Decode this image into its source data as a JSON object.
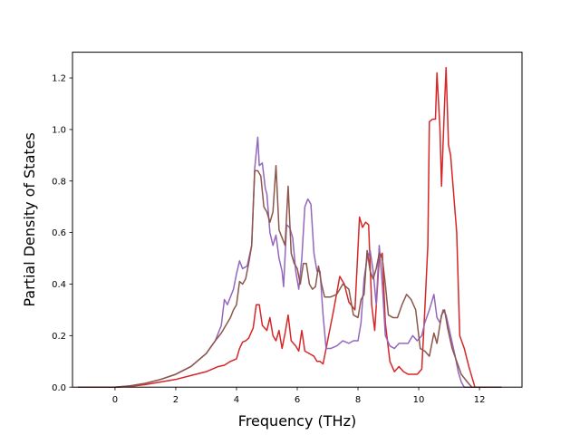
{
  "chart_data": {
    "type": "line",
    "title": "",
    "xlabel": "Frequency (THz)",
    "ylabel": "Partial Density of States",
    "xlim": [
      -1.4,
      13.4
    ],
    "ylim": [
      0.0,
      1.3
    ],
    "xticks": [
      0,
      2,
      4,
      6,
      8,
      10,
      12
    ],
    "yticks": [
      0.0,
      0.2,
      0.4,
      0.6,
      0.8,
      1.0,
      1.2
    ],
    "xtick_labels": [
      "0",
      "2",
      "4",
      "6",
      "8",
      "10",
      "12"
    ],
    "ytick_labels": [
      "0.0",
      "0.2",
      "0.4",
      "0.6",
      "0.8",
      "1.0",
      "1.2"
    ],
    "grid": false,
    "legend": "none",
    "series": [
      {
        "color": "#d62728",
        "points": [
          [
            -1.2,
            0
          ],
          [
            0,
            0
          ],
          [
            0.5,
            0.003
          ],
          [
            1,
            0.01
          ],
          [
            1.5,
            0.02
          ],
          [
            2,
            0.03
          ],
          [
            2.5,
            0.045
          ],
          [
            3,
            0.06
          ],
          [
            3.2,
            0.07
          ],
          [
            3.4,
            0.08
          ],
          [
            3.6,
            0.085
          ],
          [
            3.8,
            0.1
          ],
          [
            4.0,
            0.11
          ],
          [
            4.1,
            0.15
          ],
          [
            4.2,
            0.175
          ],
          [
            4.3,
            0.18
          ],
          [
            4.4,
            0.19
          ],
          [
            4.55,
            0.23
          ],
          [
            4.65,
            0.32
          ],
          [
            4.75,
            0.32
          ],
          [
            4.85,
            0.24
          ],
          [
            5.0,
            0.22
          ],
          [
            5.1,
            0.27
          ],
          [
            5.2,
            0.2
          ],
          [
            5.3,
            0.18
          ],
          [
            5.4,
            0.22
          ],
          [
            5.5,
            0.15
          ],
          [
            5.6,
            0.21
          ],
          [
            5.7,
            0.28
          ],
          [
            5.8,
            0.18
          ],
          [
            5.95,
            0.16
          ],
          [
            6.05,
            0.14
          ],
          [
            6.15,
            0.22
          ],
          [
            6.25,
            0.14
          ],
          [
            6.4,
            0.13
          ],
          [
            6.55,
            0.12
          ],
          [
            6.65,
            0.1
          ],
          [
            6.75,
            0.1
          ],
          [
            6.85,
            0.09
          ],
          [
            7.0,
            0.18
          ],
          [
            7.2,
            0.3
          ],
          [
            7.4,
            0.43
          ],
          [
            7.55,
            0.4
          ],
          [
            7.7,
            0.33
          ],
          [
            7.9,
            0.3
          ],
          [
            8.05,
            0.66
          ],
          [
            8.15,
            0.62
          ],
          [
            8.25,
            0.64
          ],
          [
            8.35,
            0.63
          ],
          [
            8.45,
            0.32
          ],
          [
            8.55,
            0.22
          ],
          [
            8.7,
            0.5
          ],
          [
            8.8,
            0.52
          ],
          [
            8.9,
            0.25
          ],
          [
            9.05,
            0.1
          ],
          [
            9.2,
            0.06
          ],
          [
            9.35,
            0.08
          ],
          [
            9.5,
            0.06
          ],
          [
            9.65,
            0.05
          ],
          [
            9.8,
            0.05
          ],
          [
            9.95,
            0.05
          ],
          [
            10.1,
            0.07
          ],
          [
            10.2,
            0.3
          ],
          [
            10.3,
            0.55
          ],
          [
            10.35,
            1.03
          ],
          [
            10.45,
            1.04
          ],
          [
            10.55,
            1.04
          ],
          [
            10.6,
            1.22
          ],
          [
            10.7,
            1.0
          ],
          [
            10.75,
            0.78
          ],
          [
            10.85,
            1.1
          ],
          [
            10.9,
            1.24
          ],
          [
            10.98,
            0.94
          ],
          [
            11.05,
            0.9
          ],
          [
            11.15,
            0.75
          ],
          [
            11.25,
            0.6
          ],
          [
            11.35,
            0.2
          ],
          [
            11.5,
            0.15
          ],
          [
            11.65,
            0.08
          ],
          [
            11.75,
            0.04
          ],
          [
            11.85,
            0.0
          ],
          [
            12.7,
            0.0
          ]
        ]
      },
      {
        "color": "#9467bd",
        "points": [
          [
            -1.2,
            0
          ],
          [
            0,
            0
          ],
          [
            0.5,
            0.005
          ],
          [
            1,
            0.015
          ],
          [
            1.5,
            0.03
          ],
          [
            2,
            0.05
          ],
          [
            2.5,
            0.08
          ],
          [
            3,
            0.13
          ],
          [
            3.3,
            0.18
          ],
          [
            3.5,
            0.24
          ],
          [
            3.6,
            0.34
          ],
          [
            3.7,
            0.32
          ],
          [
            3.8,
            0.35
          ],
          [
            3.9,
            0.38
          ],
          [
            4.0,
            0.44
          ],
          [
            4.1,
            0.49
          ],
          [
            4.2,
            0.46
          ],
          [
            4.35,
            0.47
          ],
          [
            4.5,
            0.55
          ],
          [
            4.6,
            0.85
          ],
          [
            4.7,
            0.97
          ],
          [
            4.75,
            0.86
          ],
          [
            4.85,
            0.87
          ],
          [
            4.95,
            0.77
          ],
          [
            5.0,
            0.75
          ],
          [
            5.1,
            0.6
          ],
          [
            5.2,
            0.55
          ],
          [
            5.3,
            0.59
          ],
          [
            5.4,
            0.5
          ],
          [
            5.5,
            0.45
          ],
          [
            5.55,
            0.39
          ],
          [
            5.65,
            0.63
          ],
          [
            5.75,
            0.62
          ],
          [
            5.85,
            0.58
          ],
          [
            5.95,
            0.45
          ],
          [
            6.05,
            0.38
          ],
          [
            6.15,
            0.5
          ],
          [
            6.25,
            0.7
          ],
          [
            6.35,
            0.73
          ],
          [
            6.45,
            0.71
          ],
          [
            6.55,
            0.52
          ],
          [
            6.65,
            0.45
          ],
          [
            6.75,
            0.45
          ],
          [
            6.85,
            0.28
          ],
          [
            6.95,
            0.15
          ],
          [
            7.1,
            0.15
          ],
          [
            7.3,
            0.16
          ],
          [
            7.5,
            0.18
          ],
          [
            7.7,
            0.17
          ],
          [
            7.85,
            0.18
          ],
          [
            8.0,
            0.18
          ],
          [
            8.1,
            0.25
          ],
          [
            8.2,
            0.42
          ],
          [
            8.3,
            0.5
          ],
          [
            8.4,
            0.53
          ],
          [
            8.5,
            0.45
          ],
          [
            8.6,
            0.32
          ],
          [
            8.7,
            0.55
          ],
          [
            8.8,
            0.4
          ],
          [
            8.9,
            0.2
          ],
          [
            9.05,
            0.16
          ],
          [
            9.2,
            0.15
          ],
          [
            9.35,
            0.17
          ],
          [
            9.5,
            0.17
          ],
          [
            9.65,
            0.17
          ],
          [
            9.8,
            0.2
          ],
          [
            9.95,
            0.18
          ],
          [
            10.1,
            0.2
          ],
          [
            10.2,
            0.25
          ],
          [
            10.35,
            0.3
          ],
          [
            10.45,
            0.34
          ],
          [
            10.5,
            0.36
          ],
          [
            10.6,
            0.27
          ],
          [
            10.7,
            0.25
          ],
          [
            10.8,
            0.3
          ],
          [
            10.9,
            0.28
          ],
          [
            11.05,
            0.2
          ],
          [
            11.2,
            0.12
          ],
          [
            11.3,
            0.06
          ],
          [
            11.4,
            0.02
          ],
          [
            11.5,
            0.0
          ],
          [
            12.7,
            0.0
          ]
        ]
      },
      {
        "color": "#8c564b",
        "points": [
          [
            -1.2,
            0
          ],
          [
            0,
            0
          ],
          [
            0.5,
            0.005
          ],
          [
            1,
            0.015
          ],
          [
            1.5,
            0.03
          ],
          [
            2,
            0.05
          ],
          [
            2.5,
            0.08
          ],
          [
            3,
            0.13
          ],
          [
            3.3,
            0.18
          ],
          [
            3.5,
            0.21
          ],
          [
            3.7,
            0.25
          ],
          [
            3.8,
            0.27
          ],
          [
            3.9,
            0.3
          ],
          [
            4.0,
            0.32
          ],
          [
            4.1,
            0.41
          ],
          [
            4.2,
            0.4
          ],
          [
            4.3,
            0.42
          ],
          [
            4.4,
            0.48
          ],
          [
            4.5,
            0.55
          ],
          [
            4.6,
            0.84
          ],
          [
            4.7,
            0.84
          ],
          [
            4.8,
            0.82
          ],
          [
            4.9,
            0.7
          ],
          [
            5.0,
            0.68
          ],
          [
            5.1,
            0.64
          ],
          [
            5.2,
            0.68
          ],
          [
            5.3,
            0.86
          ],
          [
            5.4,
            0.61
          ],
          [
            5.5,
            0.58
          ],
          [
            5.6,
            0.55
          ],
          [
            5.7,
            0.78
          ],
          [
            5.8,
            0.52
          ],
          [
            5.9,
            0.48
          ],
          [
            6.0,
            0.46
          ],
          [
            6.1,
            0.4
          ],
          [
            6.2,
            0.48
          ],
          [
            6.3,
            0.48
          ],
          [
            6.4,
            0.4
          ],
          [
            6.5,
            0.38
          ],
          [
            6.6,
            0.39
          ],
          [
            6.7,
            0.47
          ],
          [
            6.8,
            0.4
          ],
          [
            6.9,
            0.35
          ],
          [
            7.1,
            0.35
          ],
          [
            7.3,
            0.36
          ],
          [
            7.5,
            0.4
          ],
          [
            7.7,
            0.38
          ],
          [
            7.85,
            0.28
          ],
          [
            8.0,
            0.27
          ],
          [
            8.1,
            0.34
          ],
          [
            8.2,
            0.36
          ],
          [
            8.3,
            0.53
          ],
          [
            8.4,
            0.45
          ],
          [
            8.5,
            0.42
          ],
          [
            8.6,
            0.46
          ],
          [
            8.7,
            0.52
          ],
          [
            8.8,
            0.5
          ],
          [
            8.9,
            0.4
          ],
          [
            9.0,
            0.28
          ],
          [
            9.15,
            0.27
          ],
          [
            9.3,
            0.27
          ],
          [
            9.45,
            0.32
          ],
          [
            9.6,
            0.36
          ],
          [
            9.75,
            0.34
          ],
          [
            9.9,
            0.3
          ],
          [
            10.05,
            0.15
          ],
          [
            10.2,
            0.14
          ],
          [
            10.35,
            0.12
          ],
          [
            10.5,
            0.21
          ],
          [
            10.6,
            0.17
          ],
          [
            10.75,
            0.28
          ],
          [
            10.85,
            0.3
          ],
          [
            10.95,
            0.23
          ],
          [
            11.1,
            0.15
          ],
          [
            11.25,
            0.1
          ],
          [
            11.4,
            0.05
          ],
          [
            11.6,
            0.02
          ],
          [
            11.75,
            0.0
          ],
          [
            12.7,
            0.0
          ]
        ]
      }
    ]
  }
}
